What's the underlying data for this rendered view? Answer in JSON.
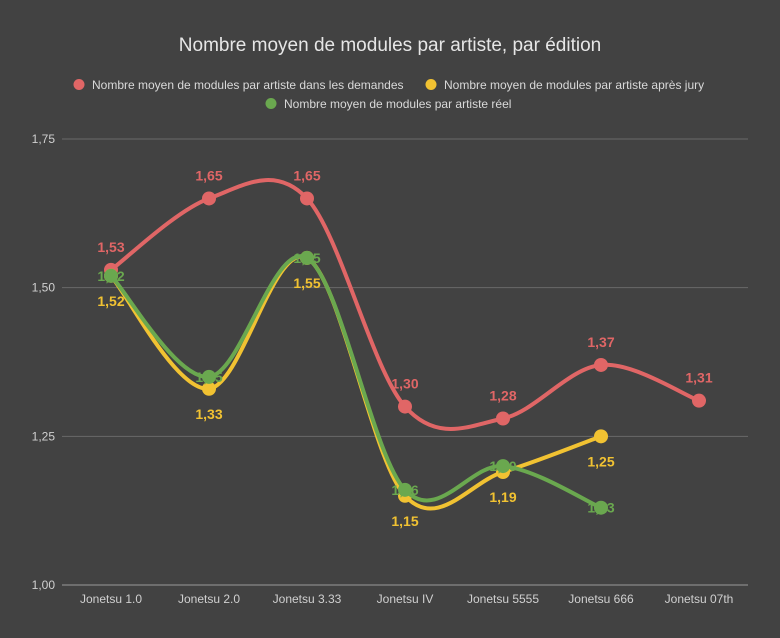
{
  "chart_data": {
    "type": "line",
    "title": "Nombre moyen de modules par artiste, par édition",
    "categories": [
      "Jonetsu 1.0",
      "Jonetsu 2.0",
      "Jonetsu 3.33",
      "Jonetsu IV",
      "Jonetsu 5555",
      "Jonetsu 666",
      "Jonetsu 07th"
    ],
    "ylim": [
      1.0,
      1.75
    ],
    "yticks": [
      "1,00",
      "1,25",
      "1,50",
      "1,75"
    ],
    "ytick_values": [
      1.0,
      1.25,
      1.5,
      1.75
    ],
    "grid": true,
    "smooth": true,
    "legend_position": "top",
    "series": [
      {
        "name": "Nombre moyen de modules par artiste dans les demandes",
        "color": "#e06666",
        "values": [
          1.53,
          1.65,
          1.65,
          1.3,
          1.28,
          1.37,
          1.31
        ],
        "labels": [
          "1,53",
          "1,65",
          "1,65",
          "1,30",
          "1,28",
          "1,37",
          "1,31"
        ],
        "label_position": "above"
      },
      {
        "name": "Nombre moyen de modules par artiste après jury",
        "color": "#f1c232",
        "values": [
          1.52,
          1.33,
          1.55,
          1.15,
          1.19,
          1.25,
          null
        ],
        "labels": [
          "1,52",
          "1,33",
          "1,55",
          "1,15",
          "1,19",
          "1,25",
          null
        ],
        "label_position": "below"
      },
      {
        "name": "Nombre moyen de modules par artiste réel",
        "color": "#6aa84f",
        "values": [
          1.52,
          1.35,
          1.55,
          1.16,
          1.2,
          1.13,
          null
        ],
        "labels": [
          "1,52",
          "1,35",
          "1,55",
          "1,16",
          "1,20",
          "1,13",
          null
        ],
        "label_position": "center"
      }
    ]
  }
}
